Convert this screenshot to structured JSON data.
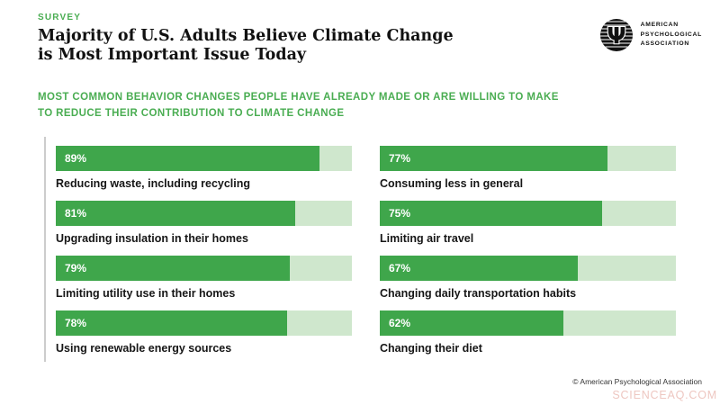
{
  "header": {
    "eyebrow": "SURVEY",
    "title_line1": "Majority of U.S. Adults Believe Climate Change",
    "title_line2": "is Most Important Issue Today",
    "logo": {
      "psi_symbol": "Ψ",
      "org_line1": "AMERICAN",
      "org_line2": "PSYCHOLOGICAL",
      "org_line3": "ASSOCIATION"
    }
  },
  "subtitle": {
    "line1": "MOST COMMON BEHAVIOR CHANGES PEOPLE HAVE ALREADY MADE OR ARE WILLING TO MAKE",
    "line2": "TO REDUCE THEIR CONTRIBUTION TO CLIMATE CHANGE"
  },
  "chart_data": {
    "type": "bar",
    "orientation": "horizontal",
    "title": "MOST COMMON BEHAVIOR CHANGES PEOPLE HAVE ALREADY MADE OR ARE WILLING TO MAKE TO REDUCE THEIR CONTRIBUTION TO CLIMATE CHANGE",
    "xlim": [
      0,
      100
    ],
    "value_suffix": "%",
    "grid": false,
    "legend": false,
    "categories": [
      "Reducing waste, including recycling",
      "Upgrading insulation in their homes",
      "Limiting utility use in their homes",
      "Using renewable energy sources",
      "Consuming less in general",
      "Limiting air travel",
      "Changing daily transportation habits",
      "Changing their diet"
    ],
    "values": [
      89,
      81,
      79,
      78,
      77,
      75,
      67,
      62
    ],
    "layout": {
      "columns": 2,
      "left_indices": [
        0,
        1,
        2,
        3
      ],
      "right_indices": [
        4,
        5,
        6,
        7
      ]
    },
    "colors": {
      "bar_fill": "#3FA64B",
      "bar_track": "#CFE7CD"
    }
  },
  "footer": {
    "copyright": "© American Psychological Association",
    "watermark": "SCIENCEAQ.COM"
  },
  "colors": {
    "accent_green": "#4AAD52",
    "axis_line": "#CCCCCC",
    "watermark_pink": "#EEC7C1"
  }
}
